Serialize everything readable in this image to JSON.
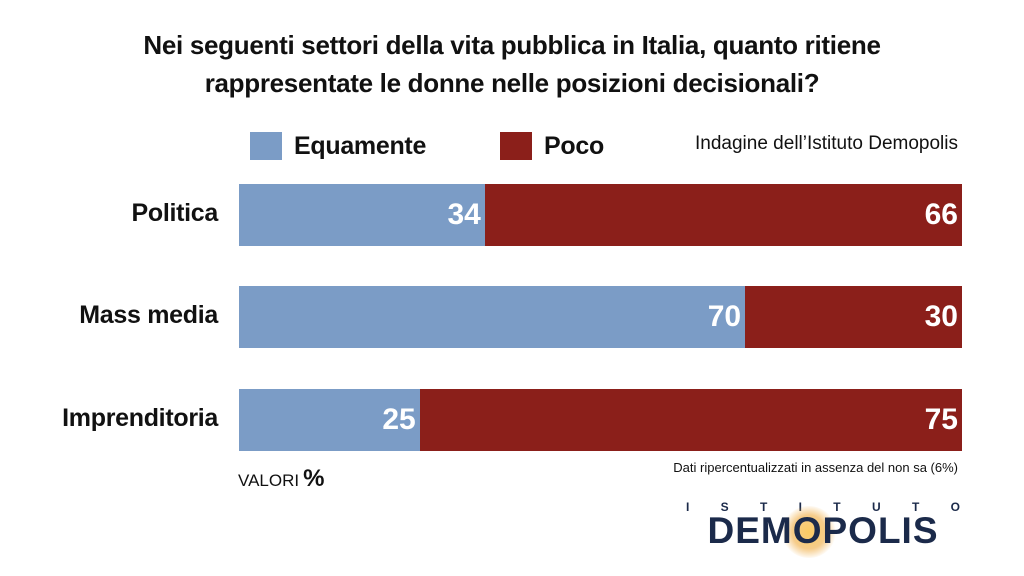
{
  "title_lines": [
    "Nei seguenti settori della vita pubblica in Italia, quanto ritiene",
    "rappresentate le donne nelle posizioni decisionali?"
  ],
  "source": "Indagine dell’Istituto Demopolis",
  "units_label": "VALORI",
  "units_symbol": "%",
  "note": "Dati ripercentualizzati in assenza del non sa (6%)",
  "logo": {
    "top_letters": [
      "I",
      "S",
      "T",
      "I",
      "T",
      "U",
      "T",
      "O"
    ],
    "word": "DEMOPOLIS"
  },
  "colors": {
    "equamente": "#7b9cc6",
    "poco": "#8b1f1a"
  },
  "chart_data": {
    "type": "bar",
    "orientation": "horizontal",
    "stacked": true,
    "title": "Nei seguenti settori della vita pubblica in Italia, quanto ritiene rappresentate le donne nelle posizioni decisionali?",
    "categories": [
      "Politica",
      "Mass media",
      "Imprenditoria"
    ],
    "series": [
      {
        "name": "Equamente",
        "values": [
          34,
          70,
          25
        ]
      },
      {
        "name": "Poco",
        "values": [
          66,
          30,
          75
        ]
      }
    ],
    "xlim": [
      0,
      100
    ],
    "legend": "top",
    "grid": false
  }
}
